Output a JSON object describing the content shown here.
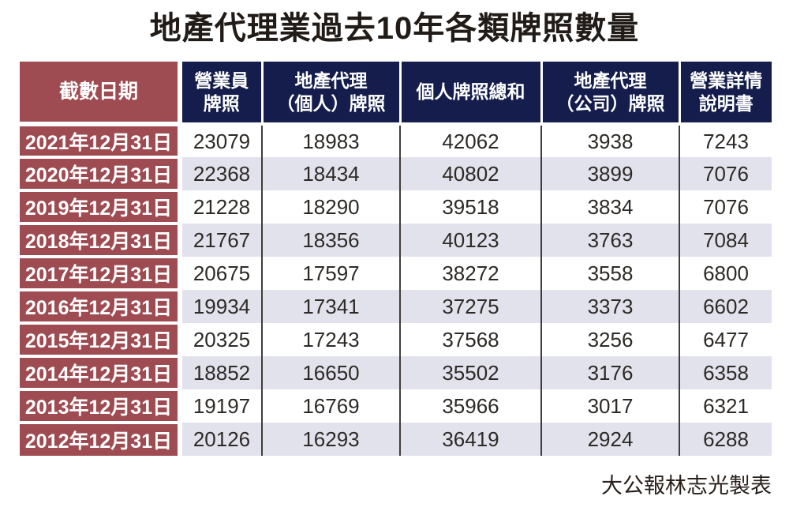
{
  "title": "地產代理業過去10年各類牌照數量",
  "footer": {
    "credit": "大公報林志光製表"
  },
  "colors": {
    "date_cell_bg": "#9e4b52",
    "header_bg": "#141d4c",
    "alt_row_bg": "#e2e2ed",
    "number_text": "#2d2a26",
    "header_text": "#ffffff",
    "column_divider": "#403d3a"
  },
  "table": {
    "headers": [
      {
        "line1": "截數日期"
      },
      {
        "line1": "營業員",
        "line2": "牌照"
      },
      {
        "line1": "地產代理",
        "line2": "（個人）牌照"
      },
      {
        "line1": "個人牌照總和"
      },
      {
        "line1": "地產代理",
        "line2": "（公司）牌照"
      },
      {
        "line1": "營業詳情",
        "line2": "說明書"
      }
    ]
  },
  "chart_data": {
    "type": "table",
    "title": "地產代理業過去10年各類牌照數量",
    "columns": [
      "截數日期",
      "營業員牌照",
      "地產代理（個人）牌照",
      "個人牌照總和",
      "地產代理（公司）牌照",
      "營業詳情說明書"
    ],
    "rows": [
      [
        "2021年12月31日",
        23079,
        18983,
        42062,
        3938,
        7243
      ],
      [
        "2020年12月31日",
        22368,
        18434,
        40802,
        3899,
        7076
      ],
      [
        "2019年12月31日",
        21228,
        18290,
        39518,
        3834,
        7076
      ],
      [
        "2018年12月31日",
        21767,
        18356,
        40123,
        3763,
        7084
      ],
      [
        "2017年12月31日",
        20675,
        17597,
        38272,
        3558,
        6800
      ],
      [
        "2016年12月31日",
        19934,
        17341,
        37275,
        3373,
        6602
      ],
      [
        "2015年12月31日",
        20325,
        17243,
        37568,
        3256,
        6477
      ],
      [
        "2014年12月31日",
        18852,
        16650,
        35502,
        3176,
        6358
      ],
      [
        "2013年12月31日",
        19197,
        16769,
        35966,
        3017,
        6321
      ],
      [
        "2012年12月31日",
        20126,
        16293,
        36419,
        2924,
        6288
      ]
    ]
  }
}
